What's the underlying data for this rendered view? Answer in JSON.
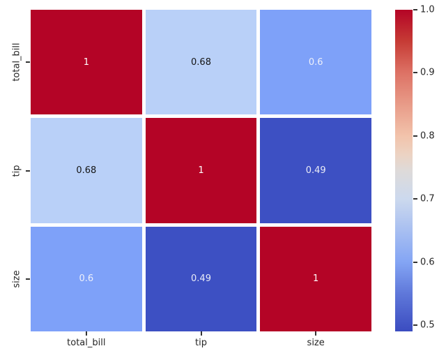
{
  "chart_data": {
    "type": "heatmap",
    "title": "",
    "xlabel": "",
    "ylabel": "",
    "x_labels": [
      "total_bill",
      "tip",
      "size"
    ],
    "y_labels": [
      "total_bill",
      "tip",
      "size"
    ],
    "matrix": [
      [
        1,
        0.68,
        0.6
      ],
      [
        0.68,
        1,
        0.49
      ],
      [
        0.6,
        0.49,
        1
      ]
    ],
    "annotations": [
      [
        "1",
        "0.68",
        "0.6"
      ],
      [
        "0.68",
        "1",
        "0.49"
      ],
      [
        "0.6",
        "0.49",
        "1"
      ]
    ],
    "cell_colors": [
      [
        "#b40426",
        "#b9d0f8",
        "#7ea1f9"
      ],
      [
        "#b9d0f8",
        "#b40426",
        "#3d50c3"
      ],
      [
        "#7ea1f9",
        "#3d50c3",
        "#b40426"
      ]
    ],
    "cell_text_colors": [
      [
        "#ffffff",
        "#151515",
        "#eef0fa"
      ],
      [
        "#151515",
        "#ffffff",
        "#e9ebf6"
      ],
      [
        "#eef0fa",
        "#e9ebf6",
        "#ffffff"
      ]
    ],
    "colormap": "coolwarm",
    "vmin": 0.49,
    "vmax": 1.0,
    "grid_line_color": "#ffffff",
    "legend_position": "right-colorbar",
    "colorbar": {
      "tick_values": [
        1.0,
        0.9,
        0.8,
        0.7,
        0.6,
        0.5
      ],
      "tick_labels": [
        "1.0",
        "0.9",
        "0.8",
        "0.7",
        "0.6",
        "0.5"
      ],
      "gradient_stops": [
        {
          "pos": 0,
          "color": "#b40426"
        },
        {
          "pos": 9.8,
          "color": "#c63b35"
        },
        {
          "pos": 19.6,
          "color": "#dd7265"
        },
        {
          "pos": 29.4,
          "color": "#e89b88"
        },
        {
          "pos": 39.2,
          "color": "#f2c3ab"
        },
        {
          "pos": 45.1,
          "color": "#ecd3c3"
        },
        {
          "pos": 50,
          "color": "#dedad9"
        },
        {
          "pos": 58.8,
          "color": "#ccd9ee"
        },
        {
          "pos": 68.6,
          "color": "#a8bff1"
        },
        {
          "pos": 78.4,
          "color": "#84a5f4"
        },
        {
          "pos": 88.2,
          "color": "#5f78da"
        },
        {
          "pos": 100,
          "color": "#3b4cc0"
        }
      ]
    }
  }
}
